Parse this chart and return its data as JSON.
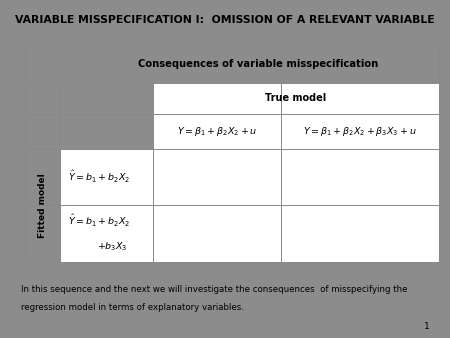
{
  "title": "VARIABLE MISSPECIFICATION I:  OMISSION OF A RELEVANT VARIABLE",
  "slide_bg": "#8c8c8c",
  "title_bg": "#f0f0f0",
  "table_bg": "#d6eef5",
  "white_bg": "#ffffff",
  "bottom_bg": "#f5f5f5",
  "bottom_text_1": "In this sequence and the next we will investigate the consequences  of misspecifying the",
  "bottom_text_2": "regression model in terms of explanatory variables.",
  "page_number": "1",
  "col_header": "Consequences of variable misspecification",
  "subheader": "True model",
  "true_model_1": "$Y = \\beta_1 + \\beta_2 X_2 + u$",
  "true_model_2": "$Y = \\beta_1 + \\beta_2 X_2 + \\beta_3 X_3 + u$",
  "fitted_label": "Fitted model",
  "fitted_1": "$\\hat{Y} = b_1 + b_2 X_2$",
  "fitted_2_line1": "$\\hat{Y} = b_1 + b_2 X_2$",
  "fitted_2_line2": "$+ b_3 X_3$"
}
